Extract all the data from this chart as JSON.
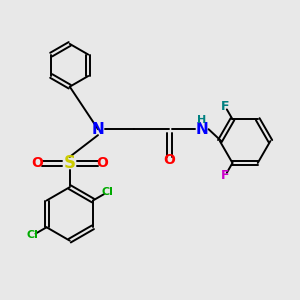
{
  "bg_color": "#e8e8e8",
  "bond_color": "#000000",
  "bond_width": 1.4,
  "atom_colors": {
    "N": "#0000ff",
    "O": "#ff0000",
    "S": "#cccc00",
    "Cl": "#00aa00",
    "F_top": "#008080",
    "F_bot": "#cc00cc",
    "H": "#008080",
    "C": "#000000"
  },
  "font_size_atoms": 8,
  "font_size_small": 7
}
